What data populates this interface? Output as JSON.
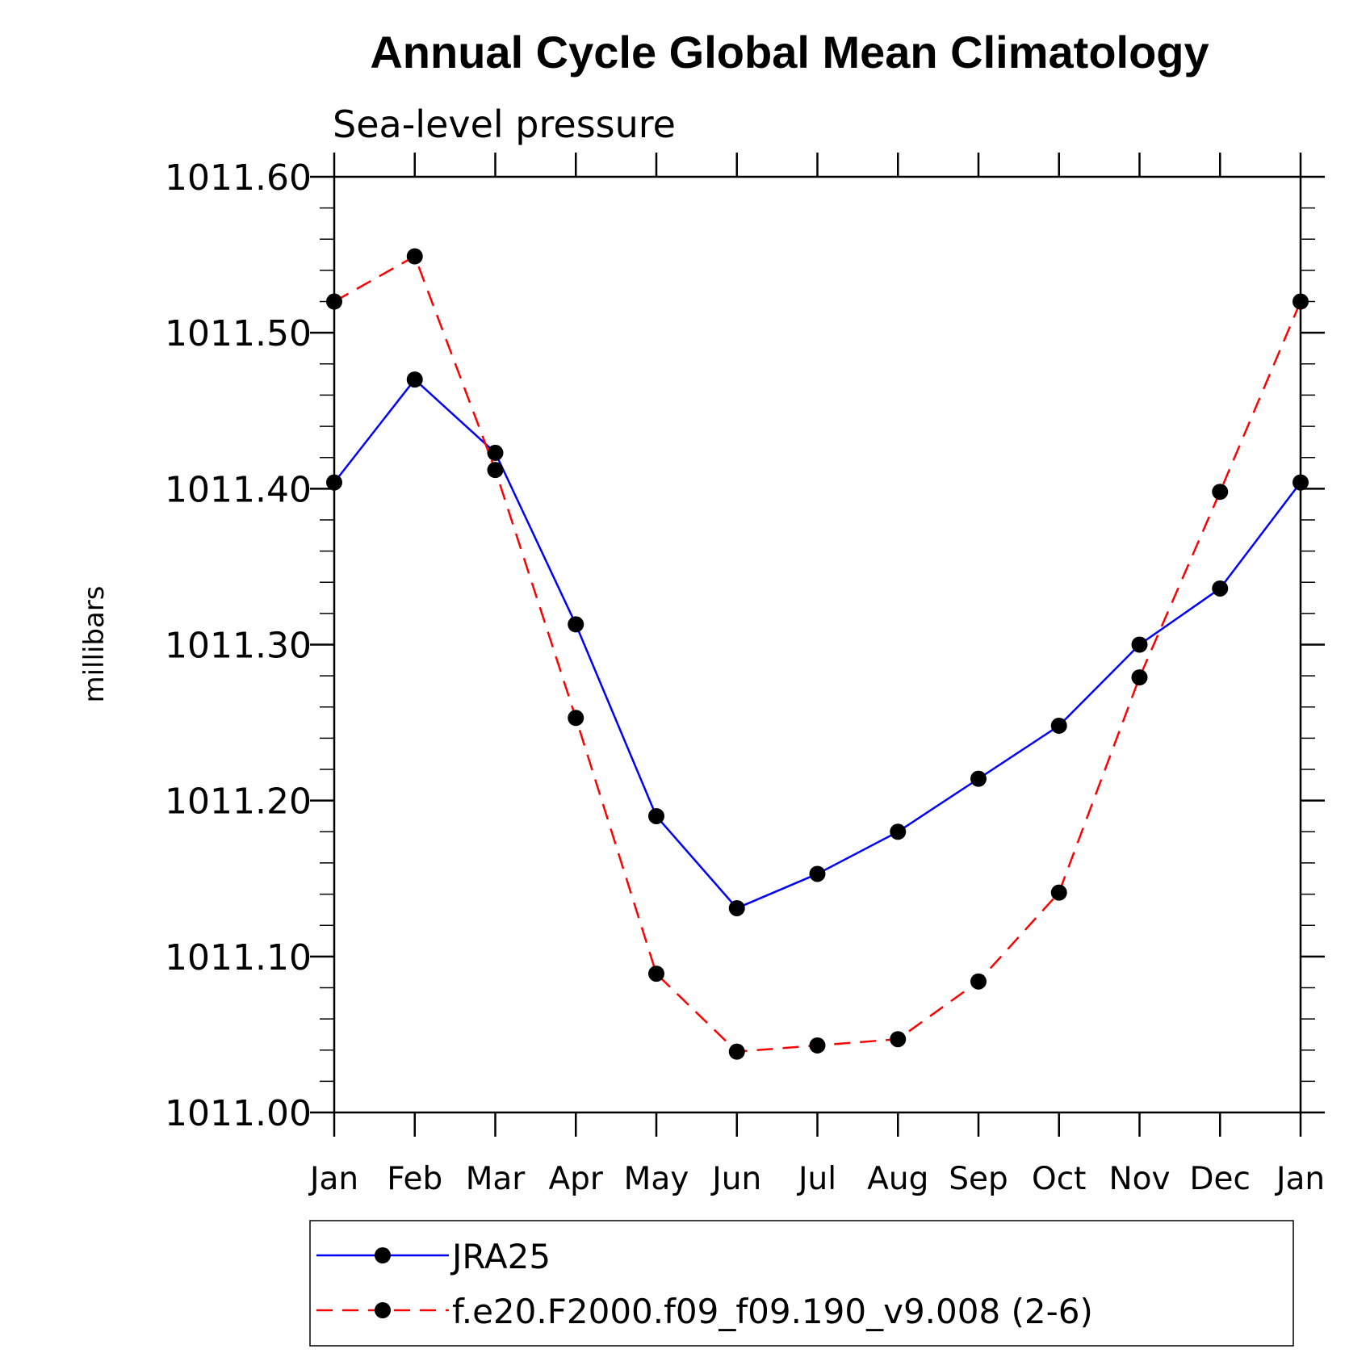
{
  "chart_data": {
    "type": "line",
    "title": "Annual Cycle Global Mean Climatology",
    "subtitle": "Sea-level pressure",
    "ylabel": "millibars",
    "xlabel": "",
    "categories": [
      "Jan",
      "Feb",
      "Mar",
      "Apr",
      "May",
      "Jun",
      "Jul",
      "Aug",
      "Sep",
      "Oct",
      "Nov",
      "Dec",
      "Jan"
    ],
    "ylim": [
      1011.0,
      1011.6
    ],
    "yticks": [
      "1011.00",
      "1011.10",
      "1011.20",
      "1011.30",
      "1011.40",
      "1011.50",
      "1011.60"
    ],
    "grid": false,
    "legend_position": "bottom",
    "series": [
      {
        "name": "JRA25",
        "color": "#0000ff",
        "style": "solid",
        "marker": "filled-circle",
        "values": [
          1011.404,
          1011.47,
          1011.423,
          1011.313,
          1011.19,
          1011.131,
          1011.153,
          1011.18,
          1011.214,
          1011.248,
          1011.3,
          1011.336,
          1011.404
        ]
      },
      {
        "name": "f.e20.F2000.f09_f09.190_v9.008 (2-6)",
        "color": "#ff0000",
        "style": "dashed",
        "marker": "filled-circle",
        "values": [
          1011.52,
          1011.549,
          1011.412,
          1011.253,
          1011.089,
          1011.039,
          1011.043,
          1011.047,
          1011.084,
          1011.141,
          1011.279,
          1011.398,
          1011.52
        ]
      }
    ]
  }
}
